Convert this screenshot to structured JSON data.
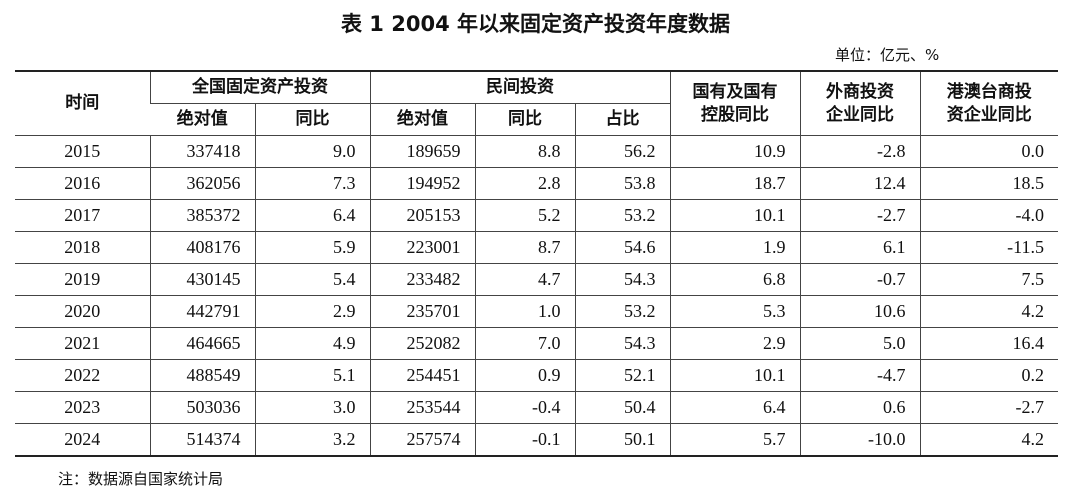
{
  "title": "表 1 2004 年以来固定资产投资年度数据",
  "unit": "单位：亿元、%",
  "table": {
    "header_row1": [
      "时间",
      "全国固定资产投资",
      "民间投资",
      [
        "国有及国有",
        "控股同比"
      ],
      [
        "外商投资",
        "企业同比"
      ],
      [
        "港澳台商投",
        "资企业同比"
      ]
    ],
    "header_row2": [
      "绝对值",
      "同比",
      "绝对值",
      "同比",
      "占比"
    ],
    "rows": [
      [
        "2015",
        "337418",
        "9.0",
        "189659",
        "8.8",
        "56.2",
        "10.9",
        "-2.8",
        "0.0"
      ],
      [
        "2016",
        "362056",
        "7.3",
        "194952",
        "2.8",
        "53.8",
        "18.7",
        "12.4",
        "18.5"
      ],
      [
        "2017",
        "385372",
        "6.4",
        "205153",
        "5.2",
        "53.2",
        "10.1",
        "-2.7",
        "-4.0"
      ],
      [
        "2018",
        "408176",
        "5.9",
        "223001",
        "8.7",
        "54.6",
        "1.9",
        "6.1",
        "-11.5"
      ],
      [
        "2019",
        "430145",
        "5.4",
        "233482",
        "4.7",
        "54.3",
        "6.8",
        "-0.7",
        "7.5"
      ],
      [
        "2020",
        "442791",
        "2.9",
        "235701",
        "1.0",
        "53.2",
        "5.3",
        "10.6",
        "4.2"
      ],
      [
        "2021",
        "464665",
        "4.9",
        "252082",
        "7.0",
        "54.3",
        "2.9",
        "5.0",
        "16.4"
      ],
      [
        "2022",
        "488549",
        "5.1",
        "254451",
        "0.9",
        "52.1",
        "10.1",
        "-4.7",
        "0.2"
      ],
      [
        "2023",
        "503036",
        "3.0",
        "253544",
        "-0.4",
        "50.4",
        "6.4",
        "0.6",
        "-2.7"
      ],
      [
        "2024",
        "514374",
        "3.2",
        "257574",
        "-0.1",
        "50.1",
        "5.7",
        "-10.0",
        "4.2"
      ]
    ]
  },
  "note": "注：数据源自国家统计局"
}
